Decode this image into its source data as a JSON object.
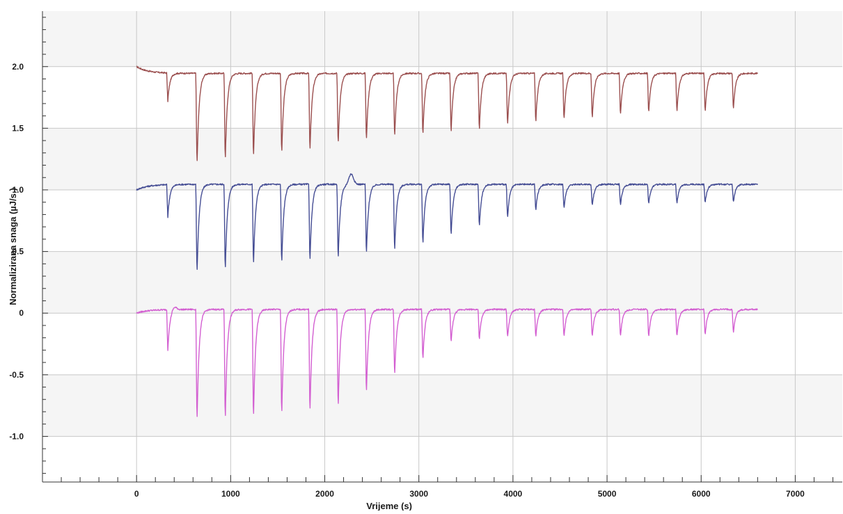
{
  "chart_data": {
    "type": "line",
    "title": "",
    "xlabel": "Vrijeme (s)",
    "ylabel": "Normalizirana snaga (µJ/s )",
    "xlim": [
      -1000,
      7500
    ],
    "ylim": [
      -1.37,
      2.45
    ],
    "x_ticks": [
      0,
      1000,
      2000,
      3000,
      4000,
      5000,
      6000,
      7000
    ],
    "x_tick_labels": [
      "0",
      "1000",
      "2000",
      "3000",
      "4000",
      "5000",
      "6000",
      "7000"
    ],
    "y_ticks": [
      2.0,
      1.5,
      1.0,
      0.5,
      0,
      -0.5,
      -1.0
    ],
    "y_tick_labels": [
      "2.0",
      "1.5",
      "1.0",
      "0.5",
      "0",
      "-0.5",
      "-1.0"
    ],
    "grid": true,
    "legend": "none",
    "series": [
      {
        "color": "#9b4f4f",
        "x_start": 0,
        "x_end": 6600,
        "baseline_start": 2.0,
        "baseline": 1.945,
        "injection_times": [
          320,
          630,
          930,
          1230,
          1530,
          1830,
          2130,
          2430,
          2730,
          3030,
          3330,
          3630,
          3930,
          4230,
          4530,
          4830,
          5130,
          5430,
          5730,
          6030,
          6330
        ],
        "peak_minima": [
          1.72,
          1.17,
          1.21,
          1.23,
          1.26,
          1.28,
          1.34,
          1.37,
          1.4,
          1.42,
          1.44,
          1.46,
          1.51,
          1.53,
          1.55,
          1.56,
          1.59,
          1.61,
          1.62,
          1.62,
          1.64
        ]
      },
      {
        "color": "#454d94",
        "x_start": 0,
        "x_end": 6600,
        "baseline_start": 1.0,
        "baseline": 1.045,
        "injection_times": [
          320,
          630,
          930,
          1230,
          1530,
          1830,
          2130,
          2430,
          2730,
          3030,
          3330,
          3630,
          3930,
          4230,
          4530,
          4830,
          5130,
          5430,
          5730,
          6030,
          6330
        ],
        "peak_minima": [
          0.78,
          0.29,
          0.31,
          0.36,
          0.37,
          0.39,
          0.41,
          0.45,
          0.48,
          0.53,
          0.61,
          0.68,
          0.76,
          0.82,
          0.84,
          0.86,
          0.87,
          0.88,
          0.88,
          0.89,
          0.89
        ],
        "bump_at": 2280,
        "bump_peak": 1.13
      },
      {
        "color": "#d35fd1",
        "x_start": 0,
        "x_end": 6600,
        "baseline_start": 0.0,
        "baseline": 0.03,
        "injection_times": [
          320,
          630,
          930,
          1230,
          1530,
          1830,
          2130,
          2430,
          2730,
          3030,
          3330,
          3630,
          3930,
          4230,
          4530,
          4830,
          5130,
          5430,
          5730,
          6030,
          6330
        ],
        "peak_minima": [
          -0.3,
          -0.92,
          -0.91,
          -0.9,
          -0.87,
          -0.85,
          -0.81,
          -0.68,
          -0.53,
          -0.4,
          -0.25,
          -0.23,
          -0.21,
          -0.2,
          -0.2,
          -0.2,
          -0.2,
          -0.2,
          -0.2,
          -0.19,
          -0.17
        ],
        "bump_at": 400,
        "bump_peak": 0.06
      }
    ]
  }
}
